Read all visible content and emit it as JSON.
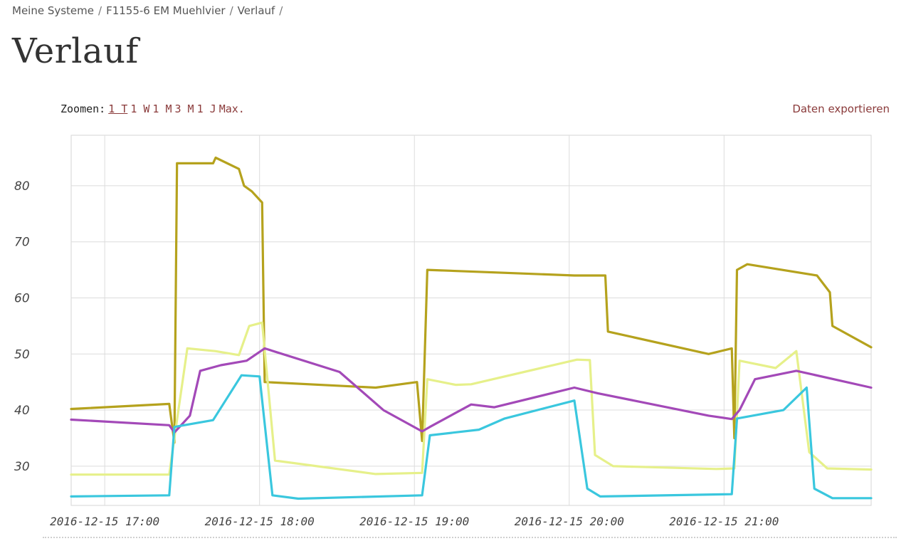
{
  "breadcrumb": {
    "items": [
      "Meine Systeme",
      "F1155-6 EM Muehlvier",
      "Verlauf"
    ],
    "separator": "/"
  },
  "page_title": "Verlauf",
  "zoom": {
    "label": "Zoomen:",
    "options": [
      "1 T",
      "1 W",
      "1 M",
      "3 M",
      "1 J",
      "Max."
    ],
    "active": "1 T"
  },
  "export_label": "Daten exportieren",
  "chart_data": {
    "type": "line",
    "title": "",
    "xlabel": "",
    "ylabel": "",
    "xlim": [
      "2016-12-15 16:47",
      "2016-12-15 21:57"
    ],
    "ylim": [
      23,
      89
    ],
    "yticks": [
      30,
      40,
      50,
      60,
      70,
      80
    ],
    "xticks": [
      "2016-12-15 17:00",
      "2016-12-15 18:00",
      "2016-12-15 19:00",
      "2016-12-15 20:00",
      "2016-12-15 21:00"
    ],
    "xtick_labels": [
      "2016-12-15 17:00",
      "2016-12-15 18:00",
      "2016-12-15 19:00",
      "2016-12-15 20:00",
      "2016-12-15 21:00"
    ],
    "ytick_labels": [
      "30",
      "40",
      "50",
      "60",
      "70",
      "80"
    ],
    "grid": true,
    "legend": "none",
    "series": [
      {
        "color": "#b5a21d",
        "points": [
          [
            "2016-12-15 16:47",
            40.2
          ],
          [
            "2016-12-15 17:25",
            41.1
          ],
          [
            "2016-12-15 17:27",
            34.2
          ],
          [
            "2016-12-15 17:28",
            84
          ],
          [
            "2016-12-15 17:42",
            84
          ],
          [
            "2016-12-15 17:43",
            85
          ],
          [
            "2016-12-15 17:52",
            83
          ],
          [
            "2016-12-15 17:54",
            80
          ],
          [
            "2016-12-15 17:57",
            79
          ],
          [
            "2016-12-15 18:01",
            77
          ],
          [
            "2016-12-15 18:02",
            45
          ],
          [
            "2016-12-15 18:45",
            44
          ],
          [
            "2016-12-15 19:01",
            45
          ],
          [
            "2016-12-15 19:03",
            34.5
          ],
          [
            "2016-12-15 19:05",
            65
          ],
          [
            "2016-12-15 20:02",
            64
          ],
          [
            "2016-12-15 20:14",
            64
          ],
          [
            "2016-12-15 20:15",
            54
          ],
          [
            "2016-12-15 20:54",
            50
          ],
          [
            "2016-12-15 21:03",
            51
          ],
          [
            "2016-12-15 21:04",
            35
          ],
          [
            "2016-12-15 21:05",
            65
          ],
          [
            "2016-12-15 21:09",
            66
          ],
          [
            "2016-12-15 21:36",
            64
          ],
          [
            "2016-12-15 21:41",
            61
          ],
          [
            "2016-12-15 21:42",
            55
          ],
          [
            "2016-12-15 21:57",
            51.2
          ]
        ]
      },
      {
        "color": "#e6f08a",
        "points": [
          [
            "2016-12-15 16:47",
            28.5
          ],
          [
            "2016-12-15 17:25",
            28.5
          ],
          [
            "2016-12-15 17:27",
            35
          ],
          [
            "2016-12-15 17:32",
            51
          ],
          [
            "2016-12-15 17:43",
            50.5
          ],
          [
            "2016-12-15 17:52",
            49.8
          ],
          [
            "2016-12-15 17:56",
            55
          ],
          [
            "2016-12-15 18:01",
            55.6
          ],
          [
            "2016-12-15 18:06",
            31
          ],
          [
            "2016-12-15 18:45",
            28.6
          ],
          [
            "2016-12-15 19:03",
            28.8
          ],
          [
            "2016-12-15 19:05",
            45.5
          ],
          [
            "2016-12-15 19:16",
            44.5
          ],
          [
            "2016-12-15 19:22",
            44.6
          ],
          [
            "2016-12-15 20:03",
            49
          ],
          [
            "2016-12-15 20:08",
            48.9
          ],
          [
            "2016-12-15 20:10",
            32
          ],
          [
            "2016-12-15 20:17",
            30
          ],
          [
            "2016-12-15 20:57",
            29.5
          ],
          [
            "2016-12-15 21:04",
            29.6
          ],
          [
            "2016-12-15 21:06",
            48.8
          ],
          [
            "2016-12-15 21:20",
            47.5
          ],
          [
            "2016-12-15 21:28",
            50.5
          ],
          [
            "2016-12-15 21:33",
            32.5
          ],
          [
            "2016-12-15 21:40",
            29.6
          ],
          [
            "2016-12-15 21:57",
            29.4
          ]
        ]
      },
      {
        "color": "#a349b8",
        "points": [
          [
            "2016-12-15 16:47",
            38.3
          ],
          [
            "2016-12-15 17:25",
            37.3
          ],
          [
            "2016-12-15 17:27",
            36
          ],
          [
            "2016-12-15 17:33",
            39
          ],
          [
            "2016-12-15 17:37",
            47
          ],
          [
            "2016-12-15 17:45",
            48
          ],
          [
            "2016-12-15 17:55",
            48.8
          ],
          [
            "2016-12-15 18:02",
            51
          ],
          [
            "2016-12-15 18:31",
            46.8
          ],
          [
            "2016-12-15 18:48",
            40
          ],
          [
            "2016-12-15 19:03",
            36.2
          ],
          [
            "2016-12-15 19:06",
            37
          ],
          [
            "2016-12-15 19:22",
            41
          ],
          [
            "2016-12-15 19:31",
            40.5
          ],
          [
            "2016-12-15 20:02",
            44
          ],
          [
            "2016-12-15 20:11",
            43
          ],
          [
            "2016-12-15 20:54",
            39
          ],
          [
            "2016-12-15 21:03",
            38.4
          ],
          [
            "2016-12-15 21:06",
            40
          ],
          [
            "2016-12-15 21:12",
            45.5
          ],
          [
            "2016-12-15 21:28",
            47
          ],
          [
            "2016-12-15 21:57",
            44
          ]
        ]
      },
      {
        "color": "#3ac7de",
        "points": [
          [
            "2016-12-15 16:47",
            24.6
          ],
          [
            "2016-12-15 17:25",
            24.8
          ],
          [
            "2016-12-15 17:27",
            37
          ],
          [
            "2016-12-15 17:42",
            38.2
          ],
          [
            "2016-12-15 17:53",
            46.2
          ],
          [
            "2016-12-15 18:00",
            46
          ],
          [
            "2016-12-15 18:05",
            24.8
          ],
          [
            "2016-12-15 18:15",
            24.2
          ],
          [
            "2016-12-15 19:03",
            24.8
          ],
          [
            "2016-12-15 19:06",
            35.5
          ],
          [
            "2016-12-15 19:25",
            36.5
          ],
          [
            "2016-12-15 19:35",
            38.5
          ],
          [
            "2016-12-15 20:02",
            41.7
          ],
          [
            "2016-12-15 20:07",
            26
          ],
          [
            "2016-12-15 20:12",
            24.6
          ],
          [
            "2016-12-15 21:03",
            25
          ],
          [
            "2016-12-15 21:05",
            38.5
          ],
          [
            "2016-12-15 21:23",
            40
          ],
          [
            "2016-12-15 21:32",
            44
          ],
          [
            "2016-12-15 21:35",
            26
          ],
          [
            "2016-12-15 21:42",
            24.3
          ],
          [
            "2016-12-15 21:57",
            24.3
          ]
        ]
      }
    ]
  }
}
